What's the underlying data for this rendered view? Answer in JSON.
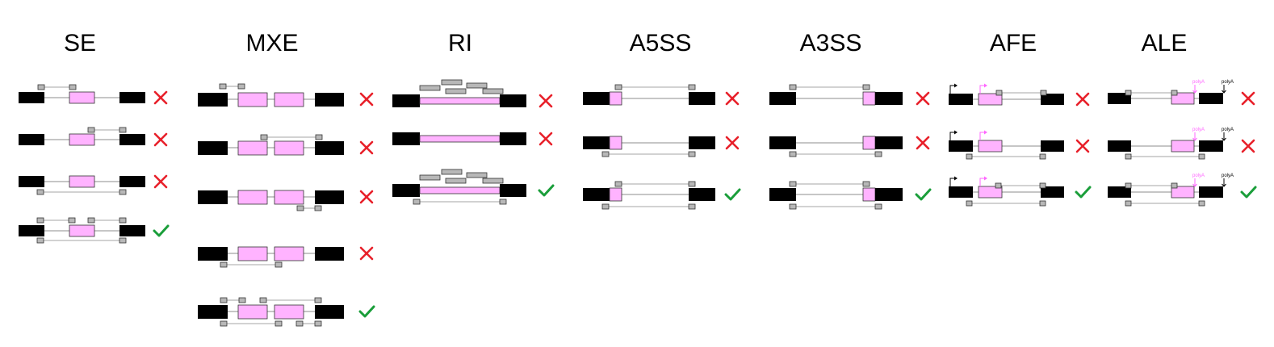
{
  "colors": {
    "constitutive_exon": "#000000",
    "alternative_exon": "#ffb3ff",
    "read": "#b8b8b8",
    "rejected": "#e8202a",
    "accepted": "#1a9e3a",
    "alt_marker": "#ff66ff"
  },
  "panels": [
    {
      "key": "se",
      "title": "SE",
      "rows": [
        {
          "verdict": "rejected"
        },
        {
          "verdict": "rejected"
        },
        {
          "verdict": "rejected"
        },
        {
          "verdict": "accepted"
        }
      ]
    },
    {
      "key": "mxe",
      "title": "MXE",
      "rows": [
        {
          "verdict": "rejected"
        },
        {
          "verdict": "rejected"
        },
        {
          "verdict": "rejected"
        },
        {
          "verdict": "rejected"
        },
        {
          "verdict": "accepted"
        }
      ]
    },
    {
      "key": "ri",
      "title": "RI",
      "rows": [
        {
          "verdict": "rejected"
        },
        {
          "verdict": "rejected"
        },
        {
          "verdict": "accepted"
        }
      ]
    },
    {
      "key": "a5ss",
      "title": "A5SS",
      "rows": [
        {
          "verdict": "rejected"
        },
        {
          "verdict": "rejected"
        },
        {
          "verdict": "accepted"
        }
      ]
    },
    {
      "key": "a3ss",
      "title": "A3SS",
      "rows": [
        {
          "verdict": "rejected"
        },
        {
          "verdict": "rejected"
        },
        {
          "verdict": "accepted"
        }
      ]
    },
    {
      "key": "afe",
      "title": "AFE",
      "rows": [
        {
          "verdict": "rejected"
        },
        {
          "verdict": "rejected"
        },
        {
          "verdict": "accepted"
        }
      ]
    },
    {
      "key": "ale",
      "title": "ALE",
      "rows": [
        {
          "verdict": "rejected",
          "tags": [
            "polyA",
            "polyA"
          ]
        },
        {
          "verdict": "rejected",
          "tags": [
            "polyA",
            "polyA"
          ]
        },
        {
          "verdict": "accepted",
          "tags": [
            "polyA",
            "polyA"
          ]
        }
      ]
    }
  ]
}
